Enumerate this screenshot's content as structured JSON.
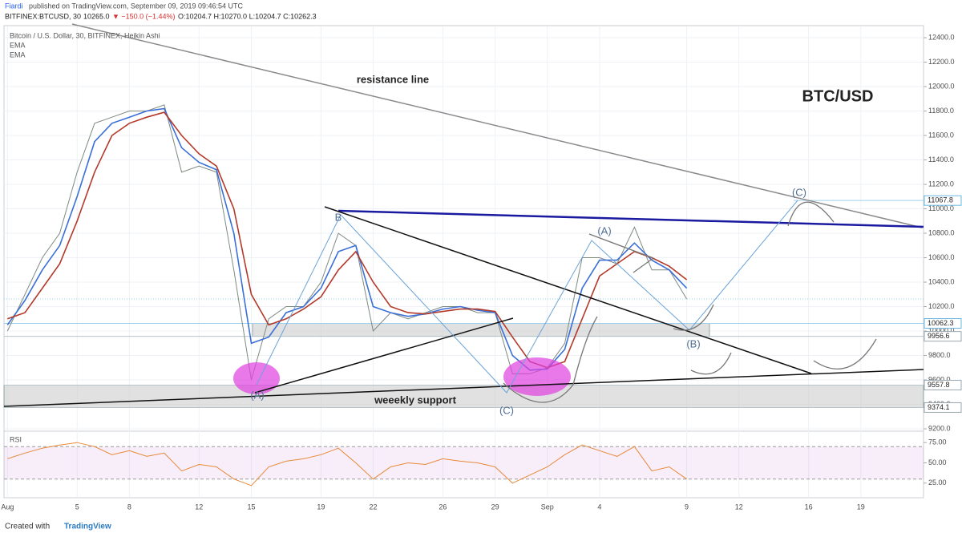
{
  "header": {
    "author": "Fiardi",
    "published": "published on TradingView.com, September 09, 2019 09:46:54 UTC",
    "symbol": "BITFINEX:BTCUSD, 30",
    "last": "10265.0",
    "change": "▼ −150.0 (−1.44%)",
    "ohlc": "O:10204.7 H:10270.0 L:10204.7 C:10262.3"
  },
  "footer": {
    "created": "Created with",
    "brand": "TradingView"
  },
  "chart_data": [
    {
      "type": "line",
      "title": "Bitcoin / U.S. Dollar, 30, BITFINEX, Heikin Ashi",
      "x": [
        0,
        1,
        2,
        3,
        4,
        5,
        6,
        7,
        8,
        9,
        10,
        11,
        12,
        13,
        14,
        15,
        16,
        17,
        18,
        19,
        20,
        21,
        22,
        23,
        24,
        25,
        26,
        27,
        28,
        29,
        30,
        31,
        32,
        33,
        34,
        35,
        36,
        37,
        38,
        39
      ],
      "series": [
        {
          "color": "#7d8a80",
          "values": [
            10000,
            10300,
            10600,
            10800,
            11300,
            11700,
            11750,
            11800,
            11800,
            11850,
            11300,
            11350,
            11300,
            10500,
            9600,
            10100,
            10200,
            10200,
            10400,
            10800,
            10700,
            10000,
            10150,
            10100,
            10150,
            10200,
            10200,
            10150,
            10150,
            9650,
            9650,
            9700,
            9900,
            10600,
            10600,
            10550,
            10850,
            10500,
            10500,
            10262.3
          ]
        },
        {
          "name": "EMA",
          "color": "#3a6fd8",
          "values": [
            10050,
            10250,
            10500,
            10700,
            11100,
            11550,
            11700,
            11750,
            11800,
            11820,
            11500,
            11380,
            11320,
            10800,
            9900,
            9950,
            10150,
            10200,
            10350,
            10650,
            10700,
            10200,
            10150,
            10120,
            10140,
            10180,
            10200,
            10170,
            10150,
            9800,
            9680,
            9690,
            9850,
            10350,
            10580,
            10580,
            10720,
            10580,
            10500,
            10350
          ]
        },
        {
          "name": "EMA",
          "color": "#b33a2a",
          "values": [
            10100,
            10150,
            10350,
            10550,
            10900,
            11300,
            11600,
            11700,
            11750,
            11790,
            11600,
            11450,
            11350,
            11000,
            10300,
            10050,
            10100,
            10180,
            10280,
            10500,
            10650,
            10400,
            10200,
            10150,
            10140,
            10160,
            10180,
            10180,
            10160,
            9950,
            9750,
            9700,
            9750,
            10100,
            10450,
            10550,
            10650,
            10600,
            10530,
            10420
          ]
        }
      ],
      "xlim": [
        -0.2,
        52.6
      ],
      "xticks": [
        {
          "value": 0,
          "label": "Aug"
        },
        {
          "value": 4,
          "label": "5"
        },
        {
          "value": 7,
          "label": "8"
        },
        {
          "value": 11,
          "label": "12"
        },
        {
          "value": 14,
          "label": "15"
        },
        {
          "value": 18,
          "label": "19"
        },
        {
          "value": 21,
          "label": "22"
        },
        {
          "value": 25,
          "label": "26"
        },
        {
          "value": 28,
          "label": "29"
        },
        {
          "value": 31,
          "label": "Sep"
        },
        {
          "value": 34,
          "label": "4"
        },
        {
          "value": 39,
          "label": "9"
        },
        {
          "value": 42,
          "label": "12"
        },
        {
          "value": 46,
          "label": "16"
        },
        {
          "value": 49,
          "label": "19"
        }
      ],
      "ylim": [
        9187,
        12492
      ],
      "yticks": [
        {
          "value": 9200,
          "label": "9200.0"
        },
        {
          "value": 9400,
          "label": "9400.0"
        },
        {
          "value": 9600,
          "label": "9600.0"
        },
        {
          "value": 9800,
          "label": "9800.0"
        },
        {
          "value": 10000,
          "label": "10000.0"
        },
        {
          "value": 10200,
          "label": "10200.0"
        },
        {
          "value": 10400,
          "label": "10400.0"
        },
        {
          "value": 10600,
          "label": "10600.0"
        },
        {
          "value": 10800,
          "label": "10800.0"
        },
        {
          "value": 11000,
          "label": "11000.0"
        },
        {
          "value": 11200,
          "label": "11200.0"
        },
        {
          "value": 11400,
          "label": "11400.0"
        },
        {
          "value": 11600,
          "label": "11600.0"
        },
        {
          "value": 11800,
          "label": "11800.0"
        },
        {
          "value": 12000,
          "label": "12000.0"
        },
        {
          "value": 12200,
          "label": "12200.0"
        },
        {
          "value": 12400,
          "label": "12400.0"
        }
      ],
      "price_levels": [
        11067.8,
        10062.3,
        9956.6,
        9557.8,
        9374.1
      ],
      "grid": true,
      "annotations": [
        "resistance line",
        "BTC/USD",
        "weeekly support",
        "(A)",
        "(C)",
        "B",
        "(A)",
        "(B)",
        "(C)"
      ]
    },
    {
      "type": "line",
      "title": "RSI",
      "x": [
        0,
        1,
        2,
        3,
        4,
        5,
        6,
        7,
        8,
        9,
        10,
        11,
        12,
        13,
        14,
        15,
        16,
        17,
        18,
        19,
        20,
        21,
        22,
        23,
        24,
        25,
        26,
        27,
        28,
        29,
        30,
        31,
        32,
        33,
        34,
        35,
        36,
        37,
        38,
        39
      ],
      "series": [
        {
          "color": "#e8893a",
          "values": [
            55,
            62,
            68,
            72,
            75,
            70,
            60,
            65,
            58,
            62,
            40,
            48,
            45,
            30,
            22,
            45,
            52,
            55,
            60,
            68,
            50,
            30,
            45,
            50,
            48,
            55,
            52,
            50,
            45,
            25,
            35,
            45,
            60,
            72,
            65,
            58,
            70,
            40,
            45,
            30
          ]
        }
      ],
      "xlim": [
        -0.2,
        52.6
      ],
      "ylim": [
        7,
        88
      ],
      "yticks": [
        {
          "value": 25,
          "label": "25.00"
        },
        {
          "value": 50,
          "label": "50.00"
        },
        {
          "value": 75,
          "label": "75.00"
        }
      ],
      "band": [
        30,
        70
      ]
    }
  ]
}
